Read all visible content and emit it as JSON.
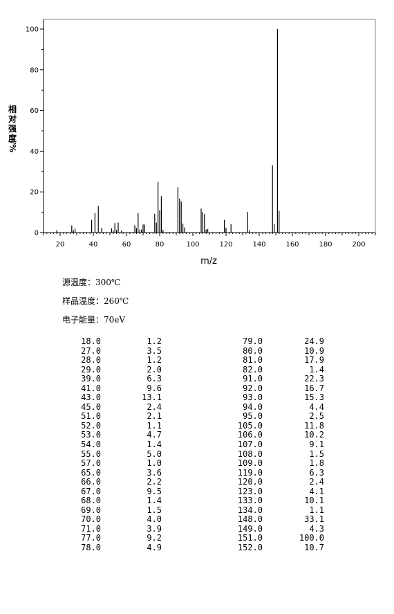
{
  "chart_data": {
    "type": "bar",
    "title": "",
    "xlabel": "m/z",
    "ylabel_chars": [
      "相",
      "对",
      "强",
      "度",
      "/%"
    ],
    "xlim": [
      10,
      210
    ],
    "ylim": [
      0,
      100
    ],
    "xticks": [
      20,
      40,
      60,
      80,
      100,
      120,
      140,
      160,
      180,
      200
    ],
    "yticks": [
      0,
      20,
      40,
      60,
      80,
      100
    ],
    "grid": false,
    "peaks": [
      {
        "mz": 18,
        "i": 1.2
      },
      {
        "mz": 27,
        "i": 3.5
      },
      {
        "mz": 28,
        "i": 1.2
      },
      {
        "mz": 29,
        "i": 2.0
      },
      {
        "mz": 39,
        "i": 6.3
      },
      {
        "mz": 41,
        "i": 9.6
      },
      {
        "mz": 43,
        "i": 13.1
      },
      {
        "mz": 45,
        "i": 2.4
      },
      {
        "mz": 51,
        "i": 2.1
      },
      {
        "mz": 52,
        "i": 1.1
      },
      {
        "mz": 53,
        "i": 4.7
      },
      {
        "mz": 54,
        "i": 1.4
      },
      {
        "mz": 55,
        "i": 5.0
      },
      {
        "mz": 57,
        "i": 1.0
      },
      {
        "mz": 65,
        "i": 3.6
      },
      {
        "mz": 66,
        "i": 2.2
      },
      {
        "mz": 67,
        "i": 9.5
      },
      {
        "mz": 68,
        "i": 1.4
      },
      {
        "mz": 69,
        "i": 1.5
      },
      {
        "mz": 70,
        "i": 4.0
      },
      {
        "mz": 71,
        "i": 3.9
      },
      {
        "mz": 77,
        "i": 9.2
      },
      {
        "mz": 78,
        "i": 4.9
      },
      {
        "mz": 79,
        "i": 24.9
      },
      {
        "mz": 80,
        "i": 10.9
      },
      {
        "mz": 81,
        "i": 17.9
      },
      {
        "mz": 82,
        "i": 1.4
      },
      {
        "mz": 91,
        "i": 22.3
      },
      {
        "mz": 92,
        "i": 16.7
      },
      {
        "mz": 93,
        "i": 15.3
      },
      {
        "mz": 94,
        "i": 4.4
      },
      {
        "mz": 95,
        "i": 2.5
      },
      {
        "mz": 105,
        "i": 11.8
      },
      {
        "mz": 106,
        "i": 10.2
      },
      {
        "mz": 107,
        "i": 9.1
      },
      {
        "mz": 108,
        "i": 1.5
      },
      {
        "mz": 109,
        "i": 1.8
      },
      {
        "mz": 119,
        "i": 6.3
      },
      {
        "mz": 120,
        "i": 2.4
      },
      {
        "mz": 123,
        "i": 4.1
      },
      {
        "mz": 133,
        "i": 10.1
      },
      {
        "mz": 134,
        "i": 1.1
      },
      {
        "mz": 148,
        "i": 33.1
      },
      {
        "mz": 149,
        "i": 4.3
      },
      {
        "mz": 151,
        "i": 100.0
      },
      {
        "mz": 152,
        "i": 10.7
      }
    ]
  },
  "conditions": {
    "source_temp": "源温度：300℃",
    "sample_temp": "样品温度：260℃",
    "electron_energy": "电子能量：70eV"
  },
  "table": {
    "left": [
      [
        "18.0",
        "1.2"
      ],
      [
        "27.0",
        "3.5"
      ],
      [
        "28.0",
        "1.2"
      ],
      [
        "29.0",
        "2.0"
      ],
      [
        "39.0",
        "6.3"
      ],
      [
        "41.0",
        "9.6"
      ],
      [
        "43.0",
        "13.1"
      ],
      [
        "45.0",
        "2.4"
      ],
      [
        "51.0",
        "2.1"
      ],
      [
        "52.0",
        "1.1"
      ],
      [
        "53.0",
        "4.7"
      ],
      [
        "54.0",
        "1.4"
      ],
      [
        "55.0",
        "5.0"
      ],
      [
        "57.0",
        "1.0"
      ],
      [
        "65.0",
        "3.6"
      ],
      [
        "66.0",
        "2.2"
      ],
      [
        "67.0",
        "9.5"
      ],
      [
        "68.0",
        "1.4"
      ],
      [
        "69.0",
        "1.5"
      ],
      [
        "70.0",
        "4.0"
      ],
      [
        "71.0",
        "3.9"
      ],
      [
        "77.0",
        "9.2"
      ],
      [
        "78.0",
        "4.9"
      ]
    ],
    "right": [
      [
        "79.0",
        "24.9"
      ],
      [
        "80.0",
        "10.9"
      ],
      [
        "81.0",
        "17.9"
      ],
      [
        "82.0",
        "1.4"
      ],
      [
        "91.0",
        "22.3"
      ],
      [
        "92.0",
        "16.7"
      ],
      [
        "93.0",
        "15.3"
      ],
      [
        "94.0",
        "4.4"
      ],
      [
        "95.0",
        "2.5"
      ],
      [
        "105.0",
        "11.8"
      ],
      [
        "106.0",
        "10.2"
      ],
      [
        "107.0",
        "9.1"
      ],
      [
        "108.0",
        "1.5"
      ],
      [
        "109.0",
        "1.8"
      ],
      [
        "119.0",
        "6.3"
      ],
      [
        "120.0",
        "2.4"
      ],
      [
        "123.0",
        "4.1"
      ],
      [
        "133.0",
        "10.1"
      ],
      [
        "134.0",
        "1.1"
      ],
      [
        "148.0",
        "33.1"
      ],
      [
        "149.0",
        "4.3"
      ],
      [
        "151.0",
        "100.0"
      ],
      [
        "152.0",
        "10.7"
      ]
    ]
  }
}
